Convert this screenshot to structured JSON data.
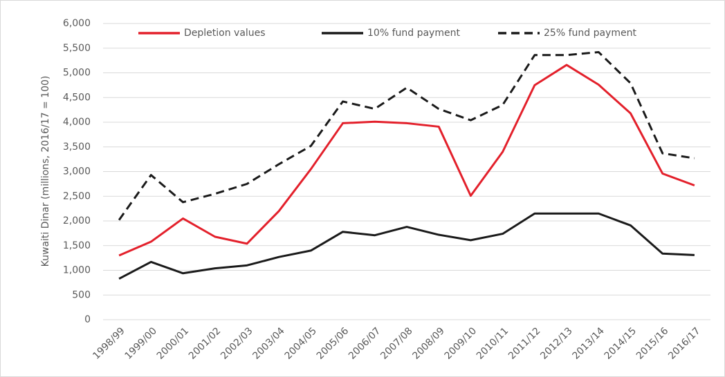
{
  "chart_data": {
    "type": "line",
    "y_label": "Kuwaiti Dinar (millions, 2016/17 = 100)",
    "categories": [
      "1998/99",
      "1999/00",
      "2000/01",
      "2001/02",
      "2002/03",
      "2003/04",
      "2004/05",
      "2005/06",
      "2006/07",
      "2007/08",
      "2008/09",
      "2009/10",
      "2010/11",
      "2011/12",
      "2012/13",
      "2013/14",
      "2014/15",
      "2015/16",
      "2016/17"
    ],
    "series": [
      {
        "name": "Depletion values",
        "color": "#e3202b",
        "dashed": false,
        "values": [
          1300,
          1580,
          2050,
          1680,
          1540,
          2200,
          3050,
          3980,
          4010,
          3980,
          3910,
          2510,
          3400,
          4750,
          5160,
          4760,
          4180,
          2960,
          2720
        ]
      },
      {
        "name": "10% fund payment",
        "color": "#1a1a1a",
        "dashed": false,
        "values": [
          830,
          1170,
          940,
          1040,
          1100,
          1270,
          1400,
          1780,
          1710,
          1880,
          1720,
          1610,
          1740,
          2150,
          2150,
          2150,
          1910,
          1340,
          1310
        ]
      },
      {
        "name": "25% fund payment",
        "color": "#1a1a1a",
        "dashed": true,
        "values": [
          2020,
          2930,
          2380,
          2550,
          2750,
          3150,
          3520,
          4420,
          4270,
          4700,
          4270,
          4040,
          4350,
          5360,
          5360,
          5420,
          4790,
          3370,
          3270
        ]
      }
    ],
    "ylim": [
      0,
      6000
    ],
    "yticks": [
      0,
      500,
      {
        "value": 1000,
        "label": "1,000"
      },
      {
        "value": 1500,
        "label": "1,500"
      },
      {
        "value": 2000,
        "label": "2,000"
      },
      {
        "value": 2500,
        "label": "2,500"
      },
      {
        "value": 3000,
        "label": "3,000"
      },
      {
        "value": 3500,
        "label": "3,500"
      },
      {
        "value": 4000,
        "label": "4,000"
      },
      {
        "value": 4500,
        "label": "4,500"
      },
      {
        "value": 5000,
        "label": "5,000"
      },
      {
        "value": 5500,
        "label": "5,500"
      },
      {
        "value": 6000,
        "label": "6,000"
      }
    ],
    "grid": true,
    "legend": "top"
  }
}
